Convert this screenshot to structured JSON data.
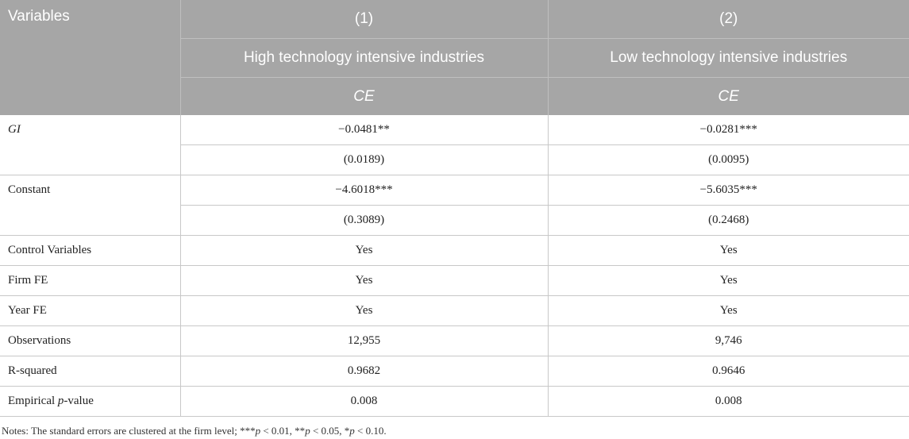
{
  "header": {
    "variables_label": "Variables",
    "col1_num": "(1)",
    "col2_num": "(2)",
    "col1_group": "High technology intensive industries",
    "col2_group": "Low technology intensive industries",
    "col1_dep": "CE",
    "col2_dep": "CE"
  },
  "rows": {
    "gi": {
      "label": "GI",
      "coef1": "−0.0481**",
      "coef2": "−0.0281***",
      "se1": "(0.0189)",
      "se2": "(0.0095)"
    },
    "constant": {
      "label": "Constant",
      "coef1": "−4.6018***",
      "coef2": "−5.6035***",
      "se1": "(0.3089)",
      "se2": "(0.2468)"
    },
    "control": {
      "label": "Control Variables",
      "v1": "Yes",
      "v2": "Yes"
    },
    "firm_fe": {
      "label": "Firm FE",
      "v1": "Yes",
      "v2": "Yes"
    },
    "year_fe": {
      "label": "Year FE",
      "v1": "Yes",
      "v2": "Yes"
    },
    "observations": {
      "label": "Observations",
      "v1": "12,955",
      "v2": "9,746"
    },
    "r_squared": {
      "label": "R-squared",
      "v1": "0.9682",
      "v2": "0.9646"
    },
    "empirical_p": {
      "label_pre": "Empirical ",
      "label_p": "p",
      "label_post": "-value",
      "v1": "0.008",
      "v2": "0.008"
    }
  },
  "notes": {
    "prefix": "Notes: The standard errors are clustered at the firm level; ***",
    "p1": "p",
    "t1": " < 0.01, **",
    "p2": "p",
    "t2": " < 0.05, *",
    "p3": "p",
    "t3": " < 0.10."
  }
}
